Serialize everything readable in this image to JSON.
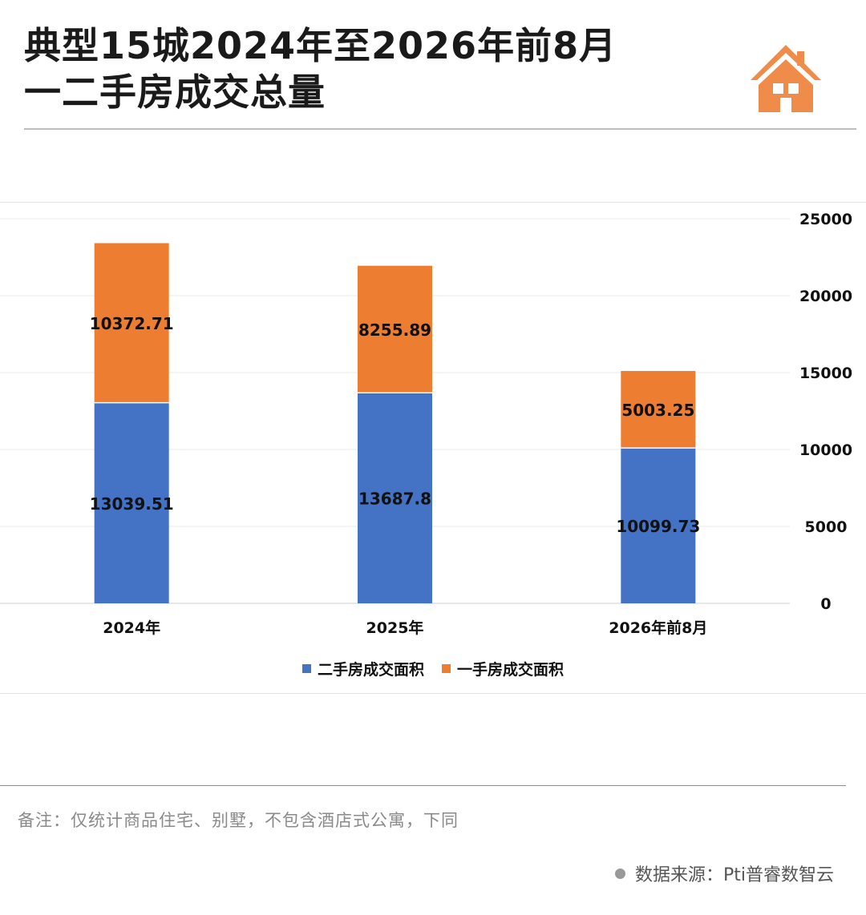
{
  "header": {
    "title_line1": "典型15城2024年至2026年前8月",
    "title_line2": "一二手房成交总量",
    "logo_icon": "house-icon",
    "accent_color": "#ef8c4a"
  },
  "chart_data": {
    "type": "bar",
    "stacked": true,
    "categories": [
      "2024年",
      "2025年",
      "2026年前8月"
    ],
    "series": [
      {
        "name": "二手房成交面积",
        "values": [
          13039.51,
          13687.8,
          10099.73
        ],
        "color": "#4472c4",
        "labels": [
          "13039.51",
          "13687.8",
          "10099.73"
        ]
      },
      {
        "name": "一手房成交面积",
        "values": [
          10372.71,
          8255.89,
          5003.25
        ],
        "color": "#ed7d31",
        "labels": [
          "10372.71",
          "8255.89",
          "5003.25"
        ]
      }
    ],
    "ylim": [
      0,
      25000
    ],
    "yticks": [
      0,
      5000,
      10000,
      15000,
      20000,
      25000
    ],
    "y_axis_side": "right",
    "grid": true,
    "legend_position": "bottom"
  },
  "footer": {
    "note": "备注：仅统计商品住宅、别墅，不包含酒店式公寓，下同",
    "source": "数据来源：Pti普睿数智云"
  }
}
